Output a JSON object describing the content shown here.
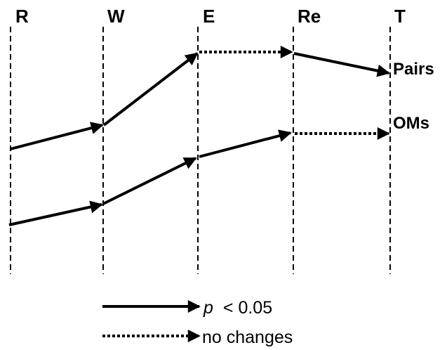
{
  "stages": [
    "R",
    "W",
    "E",
    "Re",
    "T"
  ],
  "series": [
    {
      "label": "Pairs",
      "transitions": [
        "significant",
        "significant",
        "none",
        "significant"
      ]
    },
    {
      "label": "OMs",
      "transitions": [
        "significant",
        "significant",
        "significant",
        "none"
      ]
    }
  ],
  "legend": {
    "significant_prefix": "p",
    "significant_suffix": "< 0.05",
    "none_label": "no changes"
  }
}
